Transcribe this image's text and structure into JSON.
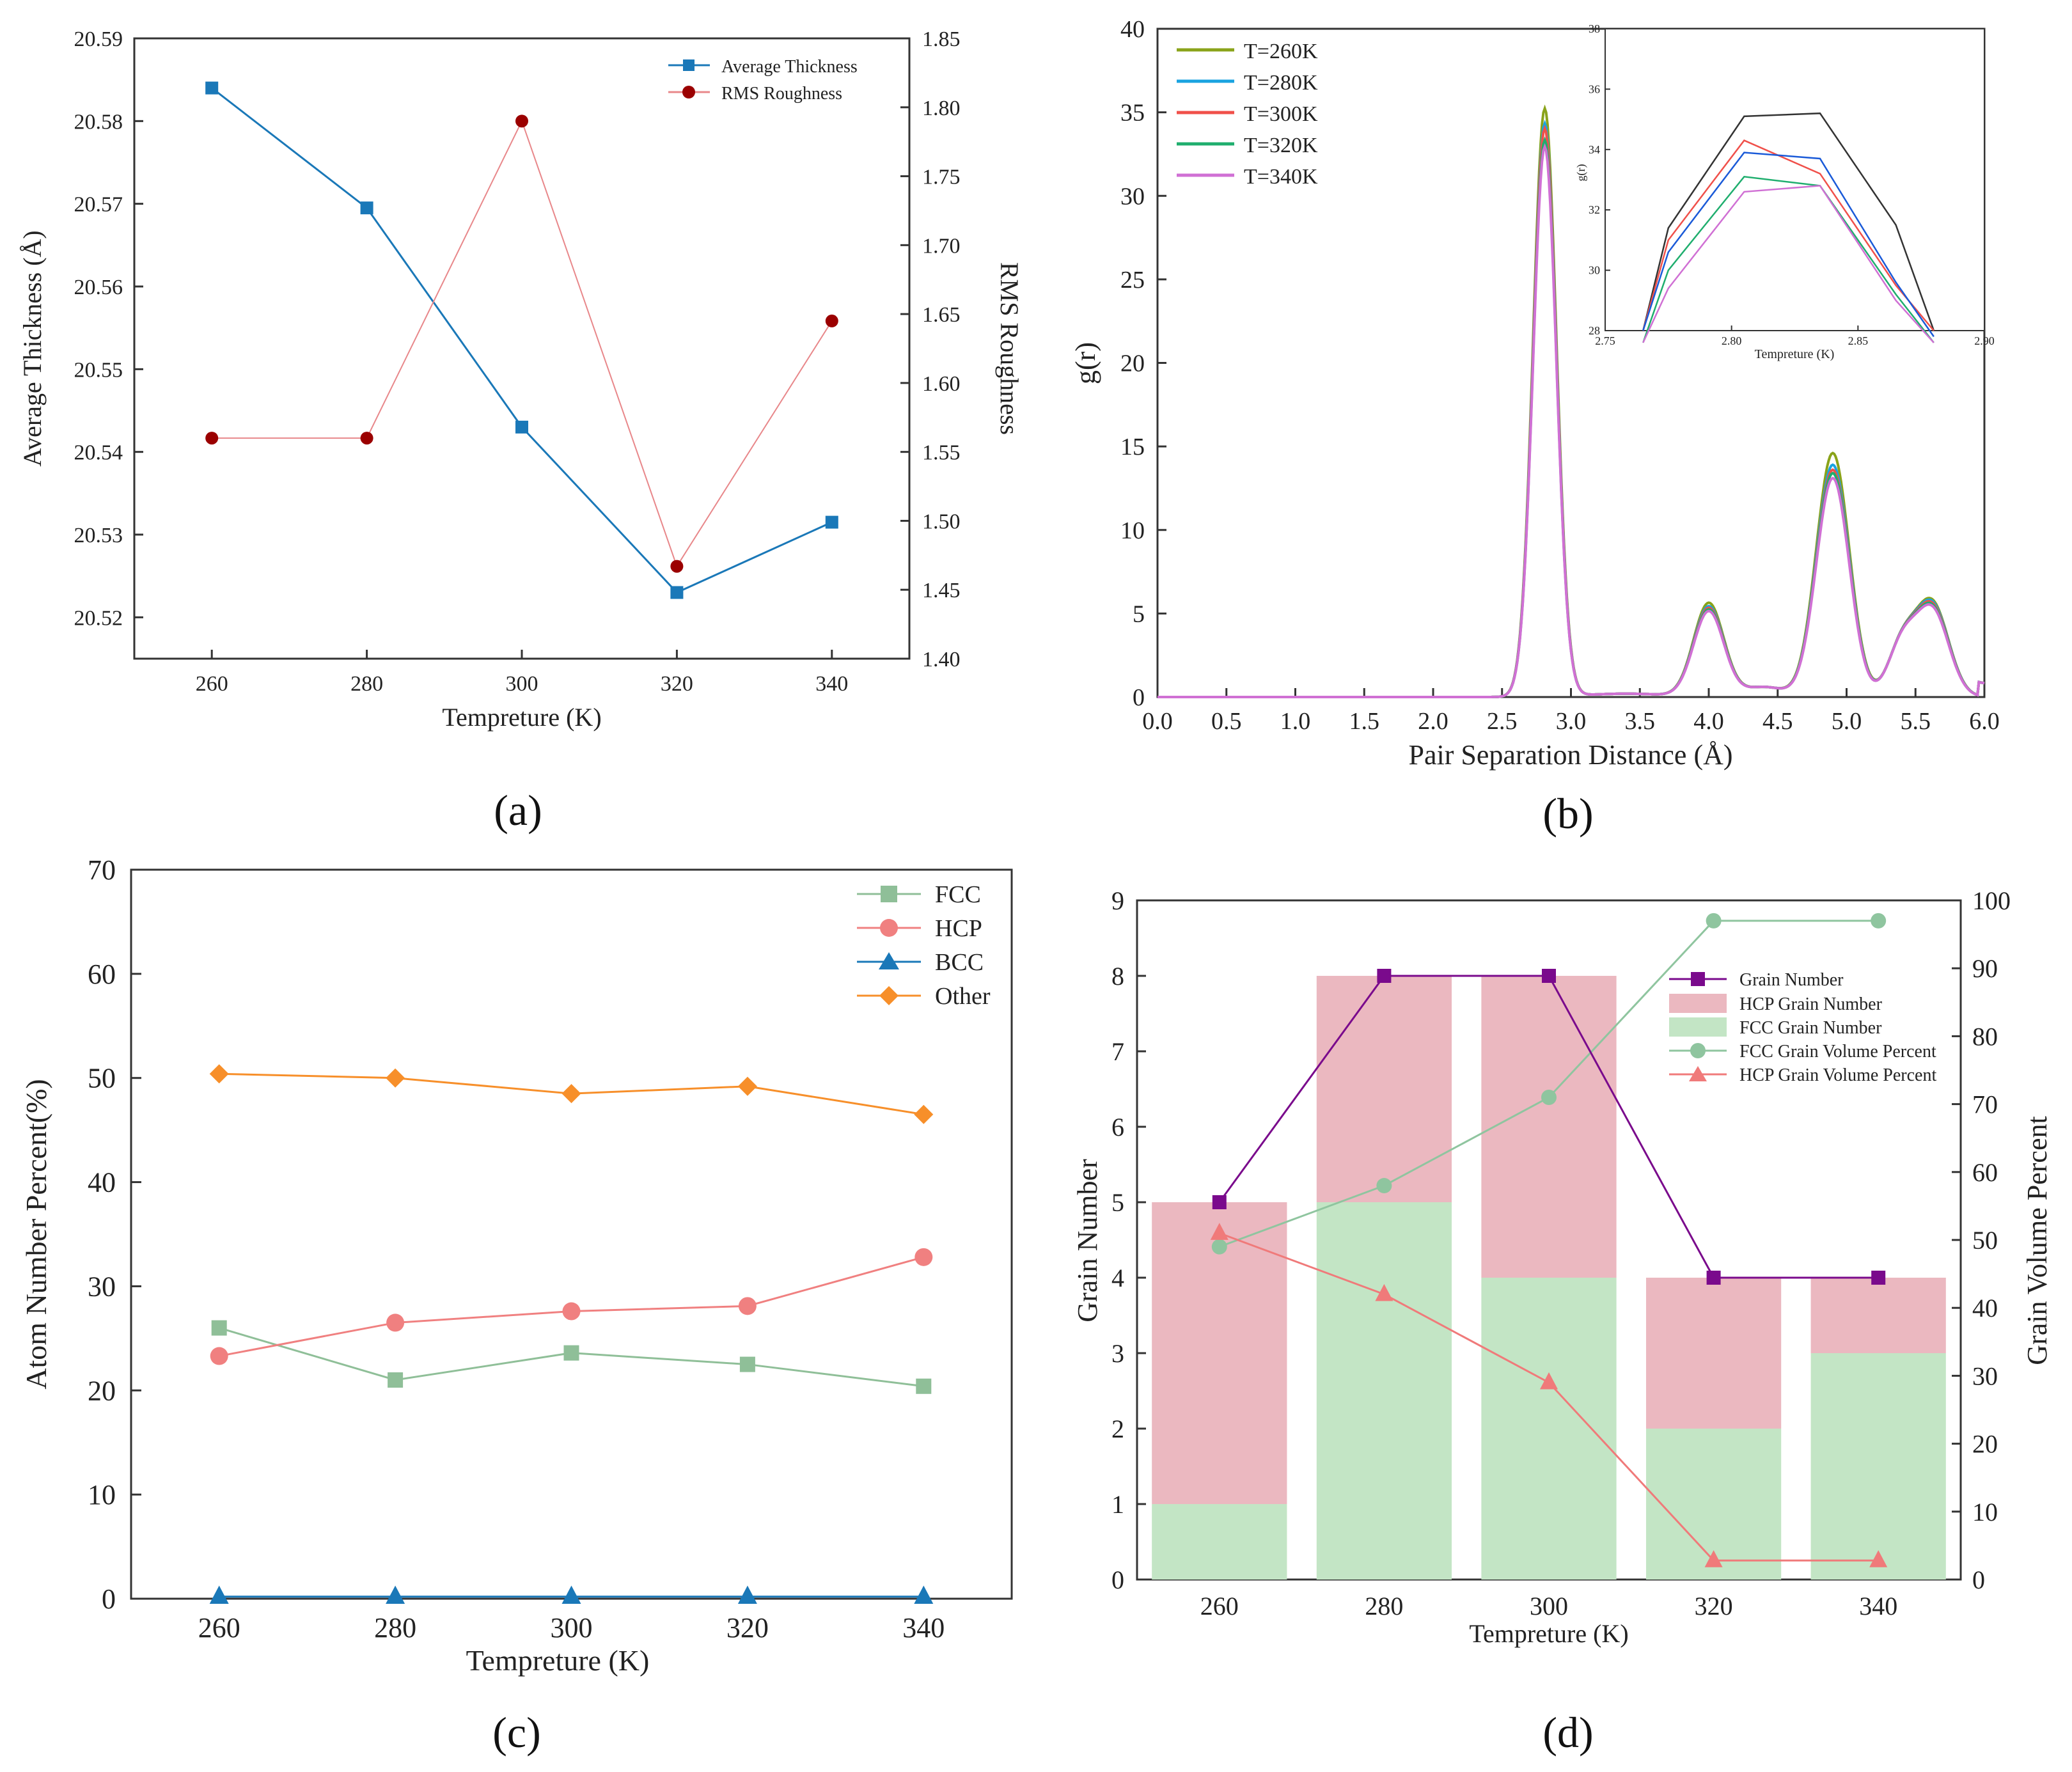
{
  "colors": {
    "blue": "#1a78b8",
    "darkred": "#9b0000",
    "lightred": "#e8878a",
    "olive": "#8aa31a",
    "cyan": "#1aa3e0",
    "red": "#f0504a",
    "green": "#1fae6e",
    "magenta": "#d070d4",
    "black": "#333333",
    "fccGreen": "#8fbf98",
    "hcpRed": "#f08080",
    "bccBlue": "#1a78b8",
    "otherOrange": "#f78f2a",
    "purple": "#7a0a8c",
    "barPink": "#ebb8c0",
    "barGreen": "#c3e5c5",
    "lineGreen": "#8fc59f",
    "lineRed": "#f07a7a"
  },
  "chart_data": [
    {
      "id": "a",
      "panel_label": "(a)",
      "type": "line",
      "xlabel": "Tempreture (K)",
      "ylabel": "Average Thickness (Å)",
      "y2label": "RMS Roughness",
      "x": [
        260,
        280,
        300,
        320,
        340
      ],
      "xlim": [
        250,
        350
      ],
      "xticks": [
        "260",
        "280",
        "300",
        "320",
        "340"
      ],
      "ylim": [
        20.515,
        20.59
      ],
      "yticks": [
        "20.52",
        "20.53",
        "20.54",
        "20.55",
        "20.56",
        "20.57",
        "20.58",
        "20.59"
      ],
      "y2lim": [
        1.4,
        1.85
      ],
      "y2ticks": [
        "1.40",
        "1.45",
        "1.50",
        "1.55",
        "1.60",
        "1.65",
        "1.70",
        "1.75",
        "1.80",
        "1.85"
      ],
      "series": [
        {
          "name": "Average Thickness",
          "axis": "left",
          "marker": "square",
          "values": [
            20.584,
            20.5695,
            20.543,
            20.523,
            20.5315
          ]
        },
        {
          "name": "RMS Roughness",
          "axis": "right",
          "marker": "circle",
          "values": [
            1.56,
            1.56,
            1.79,
            1.467,
            1.645
          ]
        }
      ]
    },
    {
      "id": "b",
      "panel_label": "(b)",
      "type": "line",
      "xlabel": "Pair Separation Distance (Å)",
      "ylabel": "g(r)",
      "xlim": [
        0,
        6
      ],
      "xticks": [
        "0.0",
        "0.5",
        "1.0",
        "1.5",
        "2.0",
        "2.5",
        "3.0",
        "3.5",
        "4.0",
        "4.5",
        "5.0",
        "5.5",
        "6.0"
      ],
      "ylim": [
        0,
        40
      ],
      "yticks": [
        "0",
        "5",
        "10",
        "15",
        "20",
        "25",
        "30",
        "35",
        "40"
      ],
      "series": [
        {
          "name": "T=260K",
          "peaks": [
            35.2,
            5.6,
            14.6,
            5.6
          ]
        },
        {
          "name": "T=280K",
          "peaks": [
            34.3,
            5.4,
            13.9,
            5.5
          ]
        },
        {
          "name": "T=300K",
          "peaks": [
            34.0,
            5.3,
            13.6,
            5.4
          ]
        },
        {
          "name": "T=320K",
          "peaks": [
            33.3,
            5.2,
            13.4,
            5.3
          ]
        },
        {
          "name": "T=340K",
          "peaks": [
            32.9,
            5.1,
            13.1,
            5.2
          ]
        }
      ],
      "inset": {
        "xlabel": "Tempreture (K)",
        "ylabel": "g(r)",
        "xlim": [
          2.75,
          2.9
        ],
        "xticks": [
          "2.75",
          "2.80",
          "2.85",
          "2.90"
        ],
        "ylim": [
          28,
          38
        ],
        "yticks": [
          "28",
          "30",
          "32",
          "34",
          "36",
          "38"
        ],
        "x": [
          2.765,
          2.775,
          2.805,
          2.835,
          2.865,
          2.88
        ],
        "series": [
          {
            "name": "black",
            "values": [
              28.0,
              31.4,
              35.1,
              35.2,
              31.5,
              28.0
            ]
          },
          {
            "name": "red",
            "values": [
              28.0,
              31.0,
              34.3,
              33.2,
              29.5,
              28.0
            ]
          },
          {
            "name": "blue",
            "values": [
              28.0,
              30.6,
              33.9,
              33.7,
              29.6,
              27.8
            ]
          },
          {
            "name": "green",
            "values": [
              27.6,
              30.0,
              33.1,
              32.8,
              29.2,
              27.6
            ]
          },
          {
            "name": "magenta",
            "values": [
              27.4,
              29.4,
              32.6,
              32.8,
              29.0,
              27.4
            ]
          }
        ]
      }
    },
    {
      "id": "c",
      "panel_label": "(c)",
      "type": "line",
      "xlabel": "Tempreture (K)",
      "ylabel": "Atom Number Percent(%)",
      "x": [
        260,
        280,
        300,
        320,
        340
      ],
      "xlim": [
        250,
        350
      ],
      "xticks": [
        "260",
        "280",
        "300",
        "320",
        "340"
      ],
      "ylim": [
        0,
        70
      ],
      "yticks": [
        "0",
        "10",
        "20",
        "30",
        "40",
        "50",
        "60",
        "70"
      ],
      "series": [
        {
          "name": "FCC",
          "marker": "square",
          "values": [
            26.0,
            21.0,
            23.6,
            22.5,
            20.4
          ]
        },
        {
          "name": "HCP",
          "marker": "circle",
          "values": [
            23.3,
            26.5,
            27.6,
            28.1,
            32.8
          ]
        },
        {
          "name": "BCC",
          "marker": "triangle",
          "values": [
            0.2,
            0.2,
            0.2,
            0.2,
            0.2
          ]
        },
        {
          "name": "Other",
          "marker": "diamond",
          "values": [
            50.4,
            50.0,
            48.5,
            49.2,
            46.5
          ]
        }
      ]
    },
    {
      "id": "d",
      "panel_label": "(d)",
      "type": "bar",
      "xlabel": "Tempreture (K)",
      "ylabel": "Grain Number",
      "y2label": "Grain Volume Percent",
      "categories": [
        "260",
        "280",
        "300",
        "320",
        "340"
      ],
      "ylim": [
        0,
        9
      ],
      "yticks": [
        "0",
        "1",
        "2",
        "3",
        "4",
        "5",
        "6",
        "7",
        "8",
        "9"
      ],
      "y2lim": [
        0,
        100
      ],
      "y2ticks": [
        "0",
        "10",
        "20",
        "30",
        "40",
        "50",
        "60",
        "70",
        "80",
        "90",
        "100"
      ],
      "series": [
        {
          "name": "Grain Number",
          "kind": "line",
          "axis": "left",
          "marker": "square",
          "values": [
            5,
            8,
            8,
            4,
            4
          ]
        },
        {
          "name": "HCP Grain Number",
          "kind": "bar",
          "axis": "left",
          "values": [
            4,
            3,
            4,
            2,
            1
          ]
        },
        {
          "name": "FCC Grain Number",
          "kind": "bar",
          "axis": "left",
          "values": [
            1,
            5,
            4,
            2,
            3
          ]
        },
        {
          "name": "FCC Grain Volume Percent",
          "kind": "line",
          "axis": "right",
          "marker": "circle",
          "values": [
            49,
            58,
            71,
            97,
            97
          ]
        },
        {
          "name": "HCP Grain Volume Percent",
          "kind": "line",
          "axis": "right",
          "marker": "triangle",
          "values": [
            51,
            42,
            29,
            2.8,
            2.8
          ]
        }
      ]
    }
  ]
}
